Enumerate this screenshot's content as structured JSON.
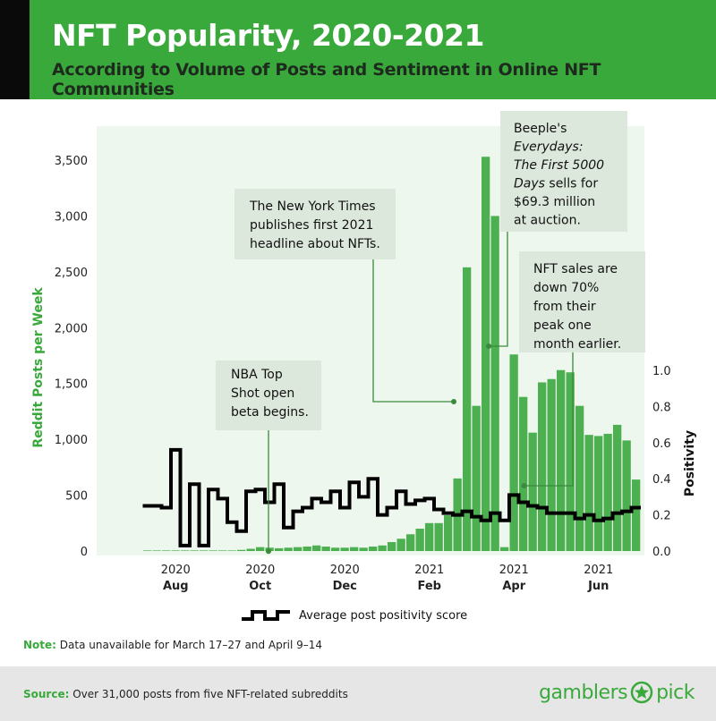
{
  "header": {
    "title": "NFT Popularity, 2020-2021",
    "subtitle": "According to Volume of Posts and Sentiment in Online NFT Communities"
  },
  "chart_data": {
    "type": "bar",
    "xlabel": "",
    "ylabel": "Reddit Posts per Week",
    "ylabel_right": "Positivity",
    "ylim": [
      0,
      3500
    ],
    "y2lim": [
      0,
      1.0
    ],
    "yticks": [
      0,
      500,
      1000,
      1500,
      2000,
      2500,
      3000,
      3500
    ],
    "yticks_labels": [
      "0",
      "500",
      "1,000",
      "1,500",
      "2,000",
      "2,500",
      "3,000",
      "3,500"
    ],
    "y2ticks": [
      0.0,
      0.2,
      0.4,
      0.6,
      0.8,
      1.0
    ],
    "y2ticks_labels": [
      "0.0",
      "0.2",
      "0.4",
      "0.6",
      "0.8",
      "1.0"
    ],
    "xticks": [
      {
        "year": "2020",
        "month": "Aug",
        "week": 6
      },
      {
        "year": "2020",
        "month": "Oct",
        "week": 15
      },
      {
        "year": "2020",
        "month": "Dec",
        "week": 24
      },
      {
        "year": "2021",
        "month": "Feb",
        "week": 33
      },
      {
        "year": "2021",
        "month": "Apr",
        "week": 42
      },
      {
        "year": "2021",
        "month": "Jun",
        "week": 51
      }
    ],
    "series": [
      {
        "name": "Reddit Posts per Week",
        "axis": "left",
        "color": "#4caf50",
        "values": [
          0,
          0,
          0,
          5,
          5,
          5,
          5,
          5,
          5,
          5,
          5,
          5,
          5,
          10,
          20,
          35,
          30,
          25,
          30,
          35,
          40,
          50,
          40,
          30,
          30,
          35,
          30,
          40,
          50,
          80,
          110,
          150,
          200,
          250,
          250,
          320,
          650,
          2540,
          1300,
          3530,
          3000,
          35,
          1760,
          1380,
          1060,
          1510,
          1540,
          1620,
          1600,
          1300,
          1040,
          1030,
          1050,
          1130,
          990,
          640
        ]
      },
      {
        "name": "Average post positivity score",
        "axis": "right",
        "color": "#000000",
        "values": [
          null,
          null,
          null,
          0.25,
          0.25,
          0.24,
          0.56,
          0.03,
          0.37,
          0.03,
          0.34,
          0.29,
          0.16,
          0.11,
          0.33,
          0.34,
          0.27,
          0.37,
          0.13,
          0.22,
          0.24,
          0.29,
          0.27,
          0.33,
          0.24,
          0.38,
          0.3,
          0.4,
          0.2,
          0.24,
          0.33,
          0.26,
          0.28,
          0.29,
          0.23,
          0.21,
          0.2,
          0.22,
          0.19,
          0.17,
          0.21,
          0.17,
          0.31,
          0.27,
          0.25,
          0.24,
          0.21,
          0.21,
          0.21,
          0.18,
          0.2,
          0.17,
          0.18,
          0.21,
          0.22,
          0.24
        ]
      }
    ],
    "annotations": [
      {
        "text": [
          "NBA Top",
          "Shot open",
          "beta begins."
        ],
        "week": 16
      },
      {
        "text": [
          "The New York Times",
          "publishes first 2021",
          "headline about NFTs."
        ],
        "week": 36
      },
      {
        "text": [
          "Beeple's",
          "Everydays:",
          "The First 5000",
          "Days sells for",
          "$69.3 million",
          "at auction."
        ],
        "week": 40
      },
      {
        "text": [
          "NFT sales are",
          "down 70%",
          "from their",
          "peak one",
          "month earlier."
        ],
        "week": 43
      }
    ],
    "grid": false,
    "legend": "bottom"
  },
  "legend": {
    "label": "Average post positivity score"
  },
  "note": {
    "label": "Note:",
    "text": " Data unavailable for March 17–27 and April 9–14"
  },
  "footer": {
    "source_label": "Source:",
    "source_text": " Over 31,000 posts from five NFT-related subreddits",
    "logo_left": "gamblers",
    "logo_right": "pick"
  }
}
